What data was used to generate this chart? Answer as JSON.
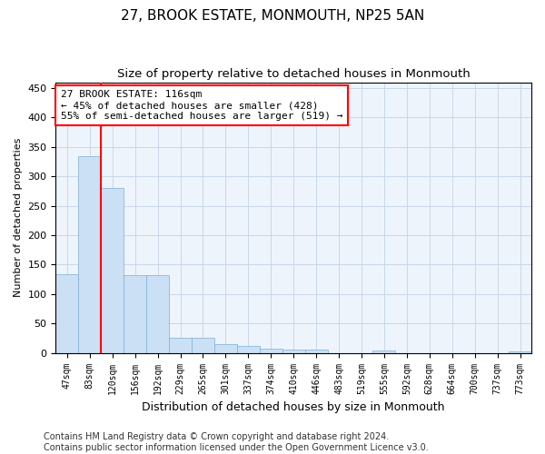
{
  "title": "27, BROOK ESTATE, MONMOUTH, NP25 5AN",
  "subtitle": "Size of property relative to detached houses in Monmouth",
  "xlabel": "Distribution of detached houses by size in Monmouth",
  "ylabel": "Number of detached properties",
  "categories": [
    "47sqm",
    "83sqm",
    "120sqm",
    "156sqm",
    "192sqm",
    "229sqm",
    "265sqm",
    "301sqm",
    "337sqm",
    "374sqm",
    "410sqm",
    "446sqm",
    "483sqm",
    "519sqm",
    "555sqm",
    "592sqm",
    "628sqm",
    "664sqm",
    "700sqm",
    "737sqm",
    "773sqm"
  ],
  "values": [
    133,
    335,
    280,
    132,
    132,
    26,
    26,
    15,
    12,
    7,
    5,
    5,
    0,
    0,
    4,
    0,
    0,
    0,
    0,
    0,
    3
  ],
  "bar_color": "#cce0f5",
  "bar_edge_color": "#7bafd4",
  "vline_x_index": 2,
  "vline_color": "red",
  "annotation_text": "27 BROOK ESTATE: 116sqm\n← 45% of detached houses are smaller (428)\n55% of semi-detached houses are larger (519) →",
  "box_color": "white",
  "box_edge_color": "red",
  "ylim": [
    0,
    460
  ],
  "yticks": [
    0,
    50,
    100,
    150,
    200,
    250,
    300,
    350,
    400,
    450
  ],
  "title_fontsize": 11,
  "subtitle_fontsize": 9.5,
  "tick_fontsize": 7,
  "ylabel_fontsize": 8,
  "xlabel_fontsize": 9,
  "annotation_fontsize": 8,
  "footer_text": "Contains HM Land Registry data © Crown copyright and database right 2024.\nContains public sector information licensed under the Open Government Licence v3.0.",
  "footer_fontsize": 7
}
